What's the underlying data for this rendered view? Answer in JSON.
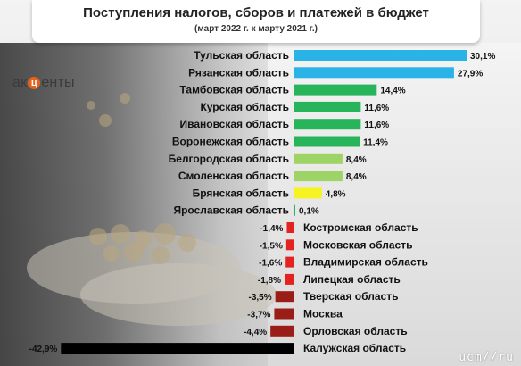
{
  "header": {
    "title": "Поступления налогов, сборов и платежей в бюджет",
    "subtitle": "(март 2022 г. к марту 2021 г.)"
  },
  "logo": {
    "before": "ак",
    "mark": "ц",
    "after": "енты"
  },
  "watermark": "ucm//ru",
  "colors": {
    "cyan": "#29b3e6",
    "green": "#27b45a",
    "light_green": "#9ed465",
    "yellow": "#f6f323",
    "red": "#e32320",
    "dark_red": "#9a1d18",
    "black": "#000000"
  },
  "chart_data": {
    "type": "bar",
    "orientation": "horizontal",
    "title": "Поступления налогов, сборов и платежей в бюджет",
    "subtitle": "(март 2022 г. к марту 2021 г.)",
    "unit": "%",
    "categories": [
      "Тульская область",
      "Рязанская область",
      "Тамбовская область",
      "Курская область",
      "Ивановская область",
      "Воронежская область",
      "Белгородская область",
      "Смоленская область",
      "Брянская область",
      "Ярославская область",
      "Костромская область",
      "Московская область",
      "Владимирская область",
      "Липецкая область",
      "Тверская область",
      "Москва",
      "Орловская область",
      "Калужская область"
    ],
    "values": [
      30.1,
      27.9,
      14.4,
      11.6,
      11.6,
      11.4,
      8.4,
      8.4,
      4.8,
      0.1,
      -1.4,
      -1.5,
      -1.6,
      -1.8,
      -3.5,
      -3.7,
      -4.4,
      -42.9
    ],
    "value_labels": [
      "30,1%",
      "27,9%",
      "14,4%",
      "11,6%",
      "11,6%",
      "11,4%",
      "8,4%",
      "8,4%",
      "4,8%",
      "0,1%",
      "-1,4%",
      "-1,5%",
      "-1,6%",
      "-1,8%",
      "-3,5%",
      "-3,7%",
      "-4,4%",
      "-42,9%"
    ],
    "bar_colors": [
      "cyan",
      "cyan",
      "green",
      "green",
      "green",
      "green",
      "light_green",
      "light_green",
      "yellow",
      "green",
      "red",
      "red",
      "red",
      "red",
      "dark_red",
      "dark_red",
      "dark_red",
      "black"
    ]
  }
}
